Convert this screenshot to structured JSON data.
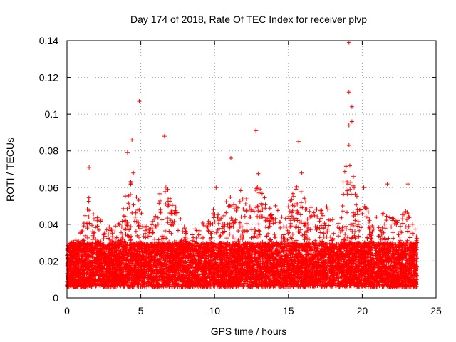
{
  "chart_data": {
    "type": "scatter",
    "title": "Day 174 of 2018, Rate Of TEC Index for receiver plvp",
    "xlabel": "GPS time / hours",
    "ylabel": "ROTI / TECUs",
    "xlim": [
      0,
      25
    ],
    "ylim": [
      0,
      0.14
    ],
    "x_ticks": [
      0,
      5,
      10,
      15,
      20,
      25
    ],
    "x_tick_labels": [
      "0",
      "5",
      "10",
      "15",
      "20",
      "25"
    ],
    "y_ticks": [
      0,
      0.02,
      0.04,
      0.06,
      0.08,
      0.1,
      0.12,
      0.14
    ],
    "y_tick_labels": [
      "0",
      "0.02",
      "0.04",
      "0.06",
      "0.08",
      "0.1",
      "0.12",
      "0.14"
    ],
    "grid": true,
    "marker": "+",
    "color": "#ff0000",
    "series": [
      {
        "name": "ROTI",
        "sample_count": 9000,
        "baseline_range": [
          0.006,
          0.03
        ],
        "x_range": [
          0,
          23.7
        ],
        "notable_points": [
          {
            "x": 19.1,
            "y": 0.139
          },
          {
            "x": 19.1,
            "y": 0.112
          },
          {
            "x": 4.9,
            "y": 0.107
          },
          {
            "x": 19.3,
            "y": 0.104
          },
          {
            "x": 19.3,
            "y": 0.096
          },
          {
            "x": 19.1,
            "y": 0.094
          },
          {
            "x": 12.8,
            "y": 0.091
          },
          {
            "x": 6.6,
            "y": 0.088
          },
          {
            "x": 4.4,
            "y": 0.086
          },
          {
            "x": 15.7,
            "y": 0.085
          },
          {
            "x": 19.1,
            "y": 0.083
          },
          {
            "x": 4.1,
            "y": 0.079
          },
          {
            "x": 11.1,
            "y": 0.076
          },
          {
            "x": 1.5,
            "y": 0.071
          },
          {
            "x": 4.5,
            "y": 0.068
          },
          {
            "x": 15.9,
            "y": 0.068
          },
          {
            "x": 19.4,
            "y": 0.066
          },
          {
            "x": 21.7,
            "y": 0.062
          },
          {
            "x": 23.1,
            "y": 0.062
          },
          {
            "x": 10.1,
            "y": 0.06
          },
          {
            "x": 20.1,
            "y": 0.06
          }
        ],
        "envelope": [
          [
            0.0,
            0.035
          ],
          [
            0.5,
            0.03
          ],
          [
            1.0,
            0.04
          ],
          [
            1.5,
            0.055
          ],
          [
            2.0,
            0.045
          ],
          [
            2.5,
            0.04
          ],
          [
            3.0,
            0.038
          ],
          [
            3.5,
            0.042
          ],
          [
            4.0,
            0.062
          ],
          [
            4.5,
            0.065
          ],
          [
            5.0,
            0.05
          ],
          [
            5.5,
            0.038
          ],
          [
            6.0,
            0.045
          ],
          [
            6.5,
            0.07
          ],
          [
            7.0,
            0.055
          ],
          [
            7.5,
            0.048
          ],
          [
            8.0,
            0.038
          ],
          [
            8.5,
            0.035
          ],
          [
            9.0,
            0.042
          ],
          [
            9.5,
            0.04
          ],
          [
            10.0,
            0.05
          ],
          [
            10.5,
            0.045
          ],
          [
            11.0,
            0.06
          ],
          [
            11.5,
            0.055
          ],
          [
            12.0,
            0.062
          ],
          [
            12.5,
            0.058
          ],
          [
            13.0,
            0.07
          ],
          [
            13.5,
            0.055
          ],
          [
            14.0,
            0.052
          ],
          [
            14.5,
            0.045
          ],
          [
            15.0,
            0.052
          ],
          [
            15.5,
            0.062
          ],
          [
            16.0,
            0.06
          ],
          [
            16.5,
            0.05
          ],
          [
            17.0,
            0.048
          ],
          [
            17.5,
            0.05
          ],
          [
            18.0,
            0.048
          ],
          [
            18.5,
            0.052
          ],
          [
            19.0,
            0.08
          ],
          [
            19.5,
            0.06
          ],
          [
            20.0,
            0.052
          ],
          [
            20.5,
            0.048
          ],
          [
            21.0,
            0.045
          ],
          [
            21.5,
            0.048
          ],
          [
            22.0,
            0.045
          ],
          [
            22.5,
            0.042
          ],
          [
            23.0,
            0.05
          ],
          [
            23.5,
            0.04
          ]
        ]
      }
    ]
  }
}
